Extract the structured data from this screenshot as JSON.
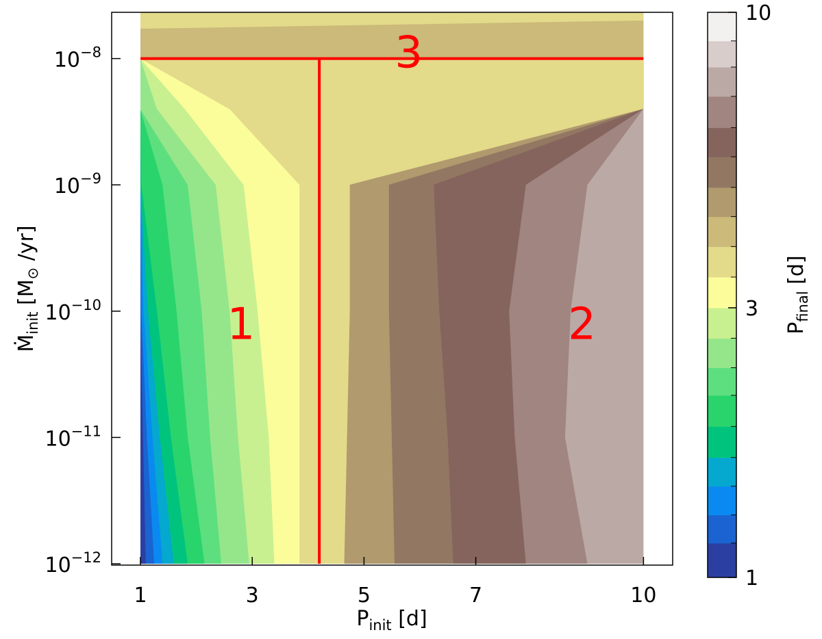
{
  "chart_data": {
    "type": "filled-contour",
    "x_axis": {
      "label_main": "P",
      "label_sub": "init",
      "label_unit": " [d]",
      "range": [
        1,
        10
      ],
      "ticks": [
        {
          "value": 1,
          "label": "1"
        },
        {
          "value": 3,
          "label": "3"
        },
        {
          "value": 5,
          "label": "5"
        },
        {
          "value": 7,
          "label": "7"
        },
        {
          "value": 10,
          "label": "10"
        }
      ]
    },
    "y_axis": {
      "label_main": "Ṁ",
      "label_sub": "init",
      "label_unit": " [M",
      "label_sun": "⊙",
      "label_tail": " /yr]",
      "scale": "log",
      "range_exponent": [
        -12,
        -7.7
      ],
      "ticks": [
        {
          "exp": -12,
          "base": "10",
          "sup": "−12"
        },
        {
          "exp": -11,
          "base": "10",
          "sup": "−11"
        },
        {
          "exp": -10,
          "base": "10",
          "sup": "−10"
        },
        {
          "exp": -9,
          "base": "10",
          "sup": "−9"
        },
        {
          "exp": -8,
          "base": "10",
          "sup": "−8"
        }
      ]
    },
    "colorbar": {
      "label_main": "P",
      "label_sub": "final",
      "label_unit": " [d]",
      "scale": "log",
      "range": [
        1,
        10
      ],
      "tick_labels": [
        {
          "value": 1,
          "label": "1"
        },
        {
          "value": 3,
          "label": "3"
        },
        {
          "value": 10,
          "label": "10"
        }
      ],
      "levels": [
        {
          "from": 1.0,
          "to": 1.15,
          "color": "#2b3fa3"
        },
        {
          "from": 1.15,
          "to": 1.29,
          "color": "#1b63d0"
        },
        {
          "from": 1.29,
          "to": 1.45,
          "color": "#0a8af0"
        },
        {
          "from": 1.45,
          "to": 1.63,
          "color": "#05a8cf"
        },
        {
          "from": 1.63,
          "to": 1.85,
          "color": "#00c47d"
        },
        {
          "from": 1.85,
          "to": 2.1,
          "color": "#2ad46c"
        },
        {
          "from": 2.1,
          "to": 2.35,
          "color": "#5ddf7f"
        },
        {
          "from": 2.35,
          "to": 2.65,
          "color": "#95e68a"
        },
        {
          "from": 2.65,
          "to": 3.0,
          "color": "#c8f090"
        },
        {
          "from": 3.0,
          "to": 3.4,
          "color": "#fbfd9b"
        },
        {
          "from": 3.4,
          "to": 3.85,
          "color": "#e3da8a"
        },
        {
          "from": 3.85,
          "to": 4.35,
          "color": "#cbba7a"
        },
        {
          "from": 4.35,
          "to": 4.9,
          "color": "#b09a6e"
        },
        {
          "from": 4.9,
          "to": 5.55,
          "color": "#927862"
        },
        {
          "from": 5.55,
          "to": 6.25,
          "color": "#86645e"
        },
        {
          "from": 6.25,
          "to": 7.1,
          "color": "#a08580"
        },
        {
          "from": 7.1,
          "to": 8.0,
          "color": "#bba9a6"
        },
        {
          "from": 8.0,
          "to": 8.9,
          "color": "#d8cdcb"
        },
        {
          "from": 8.9,
          "to": 10.0,
          "color": "#f3f0f0"
        }
      ]
    },
    "overlay_lines": {
      "color": "#ff0000",
      "horizontal_y_exponent": -8,
      "vertical_x": 4.2
    },
    "region_labels": [
      {
        "text": "1",
        "x": 2.8,
        "y_exp": -10.1
      },
      {
        "text": "2",
        "x": 8.9,
        "y_exp": -10.1
      },
      {
        "text": "3",
        "x": 5.8,
        "y_exp": -7.95
      }
    ]
  }
}
